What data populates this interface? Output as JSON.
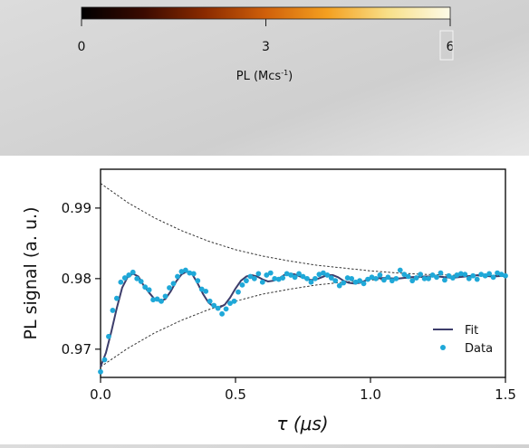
{
  "colorbar": {
    "label_main": "PL (Mcs",
    "label_sup": "-1",
    "label_end": ")",
    "ticks": [
      0,
      3,
      6
    ],
    "tick_labels": [
      "0",
      "3",
      "6"
    ],
    "range": [
      0,
      6
    ],
    "colors": [
      "#000000",
      "#3a0a00",
      "#8a2a00",
      "#d0600a",
      "#f4a020",
      "#f8e08a",
      "#fdfbe8"
    ]
  },
  "chart_data": {
    "type": "scatter",
    "title": "",
    "xlabel": "τ (μs)",
    "ylabel": "PL signal (a. u.)",
    "xlim": [
      0,
      1.5
    ],
    "ylim": [
      0.966,
      0.9955
    ],
    "xticks": [
      0.0,
      0.5,
      1.0,
      1.5
    ],
    "xtick_labels": [
      "0.0",
      "0.5",
      "1.0",
      "1.5"
    ],
    "yticks": [
      0.97,
      0.98,
      0.99
    ],
    "ytick_labels": [
      "0.97",
      "0.98",
      "0.99"
    ],
    "grid": false,
    "legend": {
      "position": "bottom-right",
      "entries": [
        "Fit",
        "Data"
      ]
    },
    "colors": {
      "fit": "#3d3d6b",
      "data": "#1fa8d8",
      "envelope": "#333333"
    },
    "series": [
      {
        "name": "Fit",
        "kind": "line",
        "x": [
          0.0,
          0.02,
          0.04,
          0.06,
          0.08,
          0.1,
          0.12,
          0.14,
          0.16,
          0.18,
          0.2,
          0.22,
          0.24,
          0.26,
          0.28,
          0.3,
          0.32,
          0.34,
          0.36,
          0.38,
          0.4,
          0.42,
          0.44,
          0.46,
          0.48,
          0.5,
          0.52,
          0.54,
          0.56,
          0.58,
          0.6,
          0.62,
          0.64,
          0.66,
          0.68,
          0.7,
          0.72,
          0.74,
          0.76,
          0.78,
          0.8,
          0.82,
          0.84,
          0.86,
          0.88,
          0.9,
          0.92,
          0.94,
          0.96,
          0.98,
          1.0,
          1.05,
          1.1,
          1.15,
          1.2,
          1.25,
          1.3,
          1.35,
          1.4,
          1.45,
          1.5
        ],
        "y": [
          0.9675,
          0.9695,
          0.9725,
          0.9758,
          0.9787,
          0.9802,
          0.9807,
          0.9803,
          0.979,
          0.978,
          0.9771,
          0.9768,
          0.9771,
          0.9782,
          0.9796,
          0.9806,
          0.981,
          0.9806,
          0.9793,
          0.9778,
          0.9766,
          0.976,
          0.9759,
          0.9763,
          0.9773,
          0.9786,
          0.9797,
          0.9803,
          0.9805,
          0.9803,
          0.9799,
          0.9796,
          0.9797,
          0.98,
          0.9805,
          0.9807,
          0.9806,
          0.9803,
          0.98,
          0.9798,
          0.9799,
          0.9802,
          0.9805,
          0.9805,
          0.9802,
          0.9797,
          0.9794,
          0.9793,
          0.9794,
          0.9797,
          0.98,
          0.9801,
          0.98,
          0.9802,
          0.9803,
          0.9803,
          0.9801,
          0.9803,
          0.9805,
          0.9803,
          0.9804
        ]
      },
      {
        "name": "Data",
        "kind": "scatter",
        "x": [
          0.0,
          0.015,
          0.03,
          0.045,
          0.06,
          0.075,
          0.09,
          0.105,
          0.12,
          0.135,
          0.15,
          0.165,
          0.18,
          0.195,
          0.21,
          0.225,
          0.24,
          0.255,
          0.27,
          0.285,
          0.3,
          0.315,
          0.33,
          0.345,
          0.36,
          0.375,
          0.39,
          0.405,
          0.42,
          0.435,
          0.45,
          0.465,
          0.48,
          0.495,
          0.51,
          0.525,
          0.54,
          0.555,
          0.57,
          0.585,
          0.6,
          0.615,
          0.63,
          0.645,
          0.66,
          0.675,
          0.69,
          0.705,
          0.72,
          0.735,
          0.75,
          0.765,
          0.78,
          0.795,
          0.81,
          0.825,
          0.84,
          0.855,
          0.87,
          0.885,
          0.9,
          0.915,
          0.93,
          0.945,
          0.96,
          0.975,
          0.99,
          1.005,
          1.02,
          1.035,
          1.05,
          1.065,
          1.08,
          1.095,
          1.11,
          1.125,
          1.14,
          1.155,
          1.17,
          1.185,
          1.2,
          1.215,
          1.23,
          1.245,
          1.26,
          1.275,
          1.29,
          1.305,
          1.32,
          1.335,
          1.35,
          1.365,
          1.38,
          1.395,
          1.41,
          1.425,
          1.44,
          1.455,
          1.47,
          1.485,
          1.5
        ],
        "y": [
          0.9668,
          0.9685,
          0.9718,
          0.9755,
          0.9772,
          0.9795,
          0.9801,
          0.9805,
          0.9809,
          0.98,
          0.9796,
          0.9788,
          0.9784,
          0.977,
          0.9771,
          0.9768,
          0.9775,
          0.9787,
          0.9793,
          0.9803,
          0.981,
          0.9812,
          0.9808,
          0.9807,
          0.9797,
          0.9785,
          0.9782,
          0.9768,
          0.9762,
          0.9758,
          0.975,
          0.9757,
          0.9765,
          0.9768,
          0.9781,
          0.9791,
          0.9797,
          0.9803,
          0.98,
          0.9807,
          0.9795,
          0.9805,
          0.9808,
          0.98,
          0.9799,
          0.9801,
          0.9807,
          0.9805,
          0.9802,
          0.9807,
          0.9803,
          0.98,
          0.9795,
          0.98,
          0.9806,
          0.9808,
          0.9805,
          0.9801,
          0.9797,
          0.979,
          0.9794,
          0.9801,
          0.98,
          0.9795,
          0.9797,
          0.9793,
          0.9799,
          0.9802,
          0.98,
          0.9805,
          0.9798,
          0.9802,
          0.9797,
          0.98,
          0.9812,
          0.9806,
          0.9803,
          0.9797,
          0.9801,
          0.9806,
          0.98,
          0.98,
          0.9805,
          0.9802,
          0.9808,
          0.9798,
          0.9804,
          0.9801,
          0.9805,
          0.9807,
          0.9806,
          0.98,
          0.9804,
          0.9799,
          0.9806,
          0.9804,
          0.9807,
          0.9802,
          0.9808,
          0.9806,
          0.9804
        ]
      },
      {
        "name": "",
        "kind": "envelope-upper",
        "x": [
          0.0,
          0.1,
          0.2,
          0.3,
          0.4,
          0.5,
          0.6,
          0.7,
          0.8,
          0.9,
          1.0,
          1.1,
          1.2,
          1.3,
          1.4,
          1.5
        ],
        "y": [
          0.9935,
          0.9908,
          0.9886,
          0.9868,
          0.9853,
          0.9841,
          0.9832,
          0.9825,
          0.9819,
          0.9815,
          0.9811,
          0.9808,
          0.9806,
          0.9805,
          0.9804,
          0.9803
        ]
      },
      {
        "name": "",
        "kind": "envelope-lower",
        "x": [
          0.0,
          0.1,
          0.2,
          0.3,
          0.4,
          0.5,
          0.6,
          0.7,
          0.8,
          0.9,
          1.0,
          1.1,
          1.2,
          1.3,
          1.4,
          1.5
        ],
        "y": [
          0.9675,
          0.9701,
          0.9723,
          0.9741,
          0.9756,
          0.9768,
          0.9778,
          0.9785,
          0.9791,
          0.9795,
          0.9798,
          0.98,
          0.9802,
          0.9803,
          0.9804,
          0.9805
        ]
      }
    ]
  }
}
